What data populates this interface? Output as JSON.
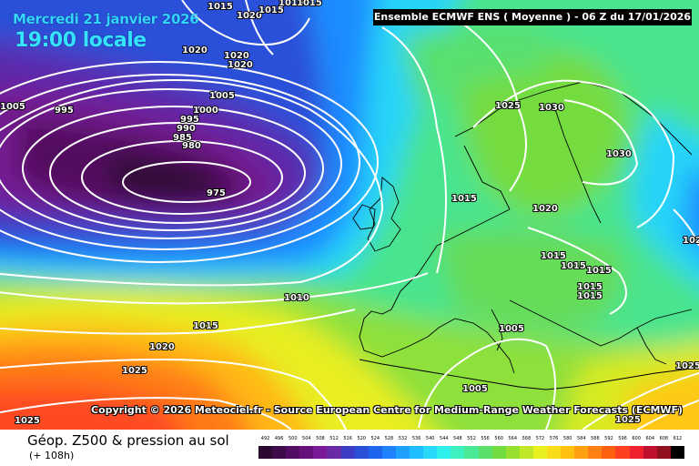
{
  "header": {
    "date_label": "Mercredi 21 janvier 2026",
    "time_label": "19:00 locale",
    "model_label": "Ensemble ECMWF ENS  ( Moyenne )  -  06 Z du 17/01/2026"
  },
  "copyright": "Copyright © 2026 Meteociel.fr - Source European Centre for Medium-Range Weather Forecasts (ECMWF)",
  "footer": {
    "field_title": "Géop. Z500 & pression au sol",
    "lead_time": "(+ 108h)"
  },
  "pressure_labels": [
    "1015",
    "1020",
    "1015",
    "1015",
    "1015",
    "1020",
    "1020",
    "1020",
    "1005",
    "995",
    "1000",
    "995",
    "990",
    "985",
    "980",
    "975",
    "1005",
    "1010",
    "1015",
    "1020",
    "1025",
    "1025",
    "1025",
    "1030",
    "1030",
    "1015",
    "1020",
    "1015",
    "1015",
    "1015",
    "1015",
    "1015",
    "1005",
    "1005",
    "1025",
    "1025",
    "102"
  ],
  "legend": {
    "labels": [
      "492",
      "496",
      "500",
      "504",
      "508",
      "512",
      "516",
      "520",
      "524",
      "528",
      "532",
      "536",
      "540",
      "544",
      "548",
      "552",
      "556",
      "560",
      "564",
      "568",
      "572",
      "576",
      "580",
      "584",
      "588",
      "592",
      "596",
      "600",
      "604",
      "608",
      "612"
    ],
    "colors": [
      "#2a0830",
      "#3e0a4a",
      "#520c64",
      "#66107c",
      "#7a1a96",
      "#6a2aa8",
      "#3c3cc4",
      "#2a50d8",
      "#1e64ee",
      "#1e82ff",
      "#1ea0ff",
      "#20beff",
      "#28d8f8",
      "#30f0ec",
      "#3cf0c0",
      "#48e896",
      "#58e068",
      "#70dc40",
      "#98e030",
      "#c0e828",
      "#e8f020",
      "#f8dc18",
      "#ffc010",
      "#ffa010",
      "#ff8010",
      "#ff6010",
      "#ff4020",
      "#f02030",
      "#c01030",
      "#901020",
      "#000000"
    ]
  }
}
